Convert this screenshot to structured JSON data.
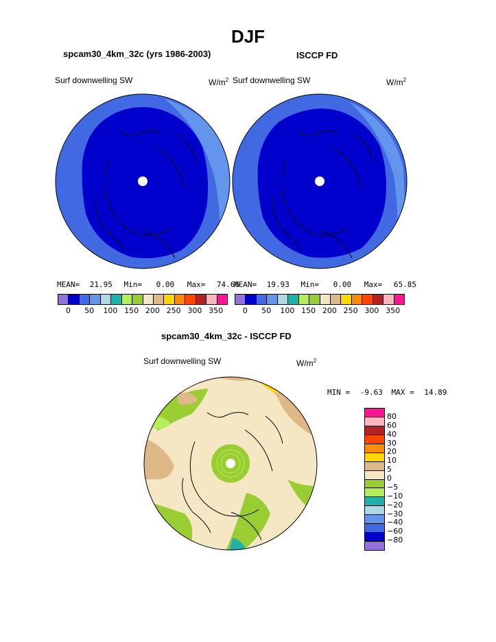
{
  "page": {
    "title": "DJF",
    "left_panel_title": "spcam30_4km_32c (yrs 1986-2003)",
    "right_panel_title": "ISCCP FD",
    "diff_title": "spcam30_4km_32c - ISCCP FD"
  },
  "panels": {
    "left": {
      "variable": "Surf downwelling SW",
      "units": "W/m",
      "units_sup": "2",
      "mean_label": "MEAN=",
      "mean_value": "21.95",
      "min_label": "Min=",
      "min_value": "0.00",
      "max_label": "Max=",
      "max_value": "74.66"
    },
    "right": {
      "variable": "Surf downwelling SW",
      "units": "W/m",
      "units_sup": "2",
      "mean_label": "MEAN=",
      "mean_value": "19.93",
      "min_label": "Min=",
      "min_value": "0.00",
      "max_label": "Max=",
      "max_value": "65.85"
    },
    "diff": {
      "variable": "Surf downwelling SW",
      "units": "W/m",
      "units_sup": "2",
      "min_label": "MIN =",
      "min_value": "-9.63",
      "max_label": "MAX =",
      "max_value": "14.89"
    }
  },
  "colorbar_abs": {
    "colors": [
      "#9370DB",
      "#0000CD",
      "#4169E1",
      "#6495ED",
      "#ADD8E6",
      "#20B2AA",
      "#B4EE5A",
      "#9ACD32",
      "#F5E6C4",
      "#DEB887",
      "#FFD700",
      "#FF8C00",
      "#FF4500",
      "#B22222",
      "#FFB6C1",
      "#FF1493"
    ],
    "tick_labels": [
      "0",
      "50",
      "100",
      "150",
      "200",
      "250",
      "300",
      "350"
    ]
  },
  "colorbar_diff": {
    "colors": [
      "#FF1493",
      "#FFB6C1",
      "#B22222",
      "#FF4500",
      "#FF8C00",
      "#FFD700",
      "#DEB887",
      "#F5E6C4",
      "#9ACD32",
      "#B4EE5A",
      "#20B2AA",
      "#ADD8E6",
      "#6495ED",
      "#4169E1",
      "#0000CD",
      "#9370DB"
    ],
    "tick_labels": [
      "80",
      "60",
      "40",
      "30",
      "20",
      "10",
      "5",
      "0",
      "−5",
      "−10",
      "−20",
      "−30",
      "−40",
      "−60",
      "−80"
    ]
  }
}
